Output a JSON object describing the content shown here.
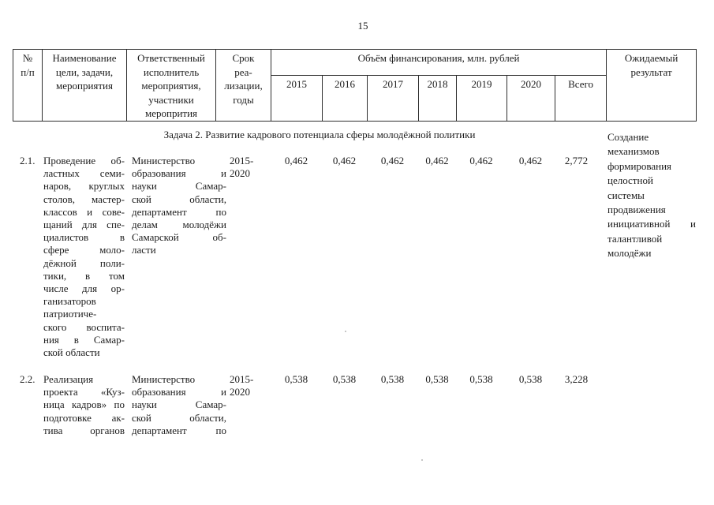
{
  "page": {
    "number": "15"
  },
  "table": {
    "header": {
      "num": [
        "№",
        "п/п"
      ],
      "name": [
        "Наименование",
        "цели, задачи,",
        "мероприятия"
      ],
      "responsible": [
        "Ответственный",
        "исполнитель",
        "мероприятия,",
        "участники",
        "меропрития"
      ],
      "term": [
        "Срок",
        "реа-",
        "лизации,",
        "годы"
      ],
      "funding_group": "Объём финансирования, млн. рублей",
      "years": [
        "2015",
        "2016",
        "2017",
        "2018",
        "2019",
        "2020",
        "Всего"
      ],
      "expected": [
        "Ожидаемый",
        "результат"
      ]
    },
    "section_title": "Задача 2. Развитие кадрового потенциала сферы молодёжной политики",
    "section_expected_result": [
      "Создание",
      "механизмов",
      "формирования",
      "целостной",
      "системы",
      "продвижения",
      "инициативной и",
      "талантливой",
      "молодёжи"
    ],
    "rows": [
      {
        "num": "2.1.",
        "name_lines": [
          "Проведение об-",
          "ластных семи-",
          "наров, круглых",
          "столов, мастер-",
          "классов и сове-",
          "щаний для спе-",
          "циалистов в",
          "сфере моло-",
          "дёжной поли-",
          "тики, в том",
          "числе для ор-",
          "ганизаторов",
          "патриотиче-",
          "ского воспита-",
          "ния в Самар-",
          "ской области"
        ],
        "responsible_lines": [
          "Министерство",
          "образования и",
          "науки Самар-",
          "ской области,",
          "департамент по",
          "делам молодёжи",
          "Самарской об-",
          "ласти"
        ],
        "term_lines": [
          "2015-",
          "2020"
        ],
        "values": [
          "0,462",
          "0,462",
          "0,462",
          "0,462",
          "0,462",
          "0,462"
        ],
        "total": "2,772"
      },
      {
        "num": "2.2.",
        "name_lines": [
          "Реализация",
          "проекта «Куз-",
          "ница кадров» по",
          "подготовке ак-",
          "тива органов"
        ],
        "responsible_lines": [
          "Министерство",
          "образования и",
          "науки Самар-",
          "ской области,",
          "департамент по"
        ],
        "term_lines": [
          "2015-",
          "2020"
        ],
        "values": [
          "0,538",
          "0,538",
          "0,538",
          "0,538",
          "0,538",
          "0,538"
        ],
        "total": "3,228"
      }
    ]
  }
}
